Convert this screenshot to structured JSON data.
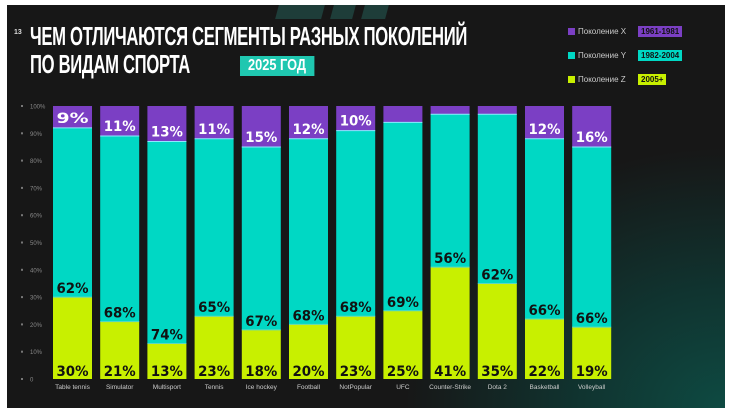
{
  "page_number": "13",
  "title_line1": "ЧЕМ ОТЛИЧАЮТСЯ СЕГМЕНТЫ РАЗНЫХ ПОКОЛЕНИЙ",
  "title_line2": "ПО ВИДАМ СПОРТА",
  "year_badge": "2025 ГОД",
  "colors": {
    "x": "#7b3fc4",
    "y": "#00d8c4",
    "z": "#c8f000",
    "bg": "#171717"
  },
  "chart_data": {
    "type": "bar",
    "stacked": true,
    "title": "ЧЕМ ОТЛИЧАЮТСЯ СЕГМЕНТЫ РАЗНЫХ ПОКОЛЕНИЙ ПО ВИДАМ СПОРТА",
    "ylim": [
      0,
      100
    ],
    "yticks": [
      "0",
      "10%",
      "20%",
      "30%",
      "40%",
      "50%",
      "60%",
      "70%",
      "80%",
      "90%",
      "100%"
    ],
    "legend_position": "top-right",
    "legend": [
      {
        "name": "Поколение X",
        "range": "1961-1981",
        "key": "x"
      },
      {
        "name": "Поколение Y",
        "range": "1982-2004",
        "key": "y"
      },
      {
        "name": "Поколение Z",
        "range": "2005+",
        "key": "z"
      }
    ],
    "categories": [
      "Table tennis",
      "Simulator",
      "Multisport",
      "Tennis",
      "Ice hockey",
      "Football",
      "NotPopular",
      "UFC",
      "Counter-Strike",
      "Dota 2",
      "Basketball",
      "Volleyball"
    ],
    "series": [
      {
        "name": "Поколение Z",
        "key": "z",
        "values": [
          30,
          21,
          13,
          23,
          18,
          20,
          23,
          25,
          41,
          35,
          22,
          19
        ],
        "labels": [
          "30%",
          "21%",
          "13%",
          "23%",
          "18%",
          "20%",
          "23%",
          "25%",
          "41%",
          "35%",
          "22%",
          "19%"
        ]
      },
      {
        "name": "Поколение Y",
        "key": "y",
        "values": [
          62,
          68,
          74,
          65,
          67,
          68,
          68,
          69,
          56,
          62,
          66,
          66
        ],
        "labels": [
          "62%",
          "68%",
          "74%",
          "65%",
          "67%",
          "68%",
          "68%",
          "69%",
          "56%",
          "62%",
          "66%",
          "66%"
        ]
      },
      {
        "name": "Поколение X",
        "key": "x",
        "values": [
          9,
          11,
          13,
          11,
          15,
          12,
          10,
          6,
          3,
          3,
          12,
          16
        ],
        "labels": [
          "9%",
          "11%",
          "13%",
          "11%",
          "15%",
          "12%",
          "10%",
          null,
          null,
          null,
          "12%",
          "16%"
        ]
      }
    ]
  }
}
